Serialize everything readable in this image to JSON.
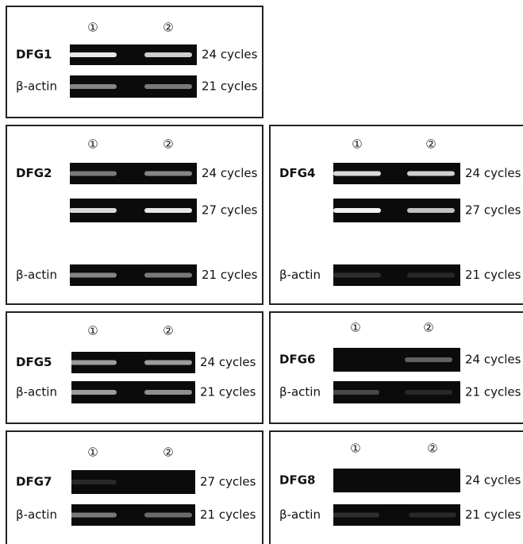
{
  "panels": [
    {
      "lanes": [
        "①",
        "②"
      ],
      "rows": [
        {
          "label": "DFG1",
          "cycles": "24 cycles"
        },
        {
          "label": "β-actin",
          "cycles": "21 cycles"
        }
      ]
    },
    {
      "lanes": [
        "①",
        "②"
      ],
      "rows": [
        {
          "label": "DFG2",
          "cycles": "24 cycles"
        },
        {
          "cycles": "27 cycles"
        },
        {
          "label": "β-actin",
          "cycles": "21 cycles"
        }
      ]
    },
    {
      "lanes": [
        "①",
        "②"
      ],
      "rows": [
        {
          "label": "DFG4",
          "cycles": "24 cycles"
        },
        {
          "cycles": "27 cycles"
        },
        {
          "label": "β-actin",
          "cycles": "21 cycles"
        }
      ]
    },
    {
      "lanes": [
        "①",
        "②"
      ],
      "rows": [
        {
          "label": "DFG5",
          "cycles": "24 cycles"
        },
        {
          "label": "β-actin",
          "cycles": "21 cycles"
        }
      ]
    },
    {
      "lanes": [
        "①",
        "②"
      ],
      "rows": [
        {
          "label": "DFG6",
          "cycles": "24 cycles"
        },
        {
          "label": "β-actin",
          "cycles": "21 cycles"
        }
      ]
    },
    {
      "lanes": [
        "①",
        "②"
      ],
      "rows": [
        {
          "label": "DFG7",
          "cycles": "27 cycles"
        },
        {
          "label": "β-actin",
          "cycles": "21 cycles"
        }
      ]
    },
    {
      "lanes": [
        "①",
        "②"
      ],
      "rows": [
        {
          "label": "DFG8",
          "cycles": "24 cycles"
        },
        {
          "label": "β-actin",
          "cycles": "21 cycles"
        }
      ]
    }
  ]
}
